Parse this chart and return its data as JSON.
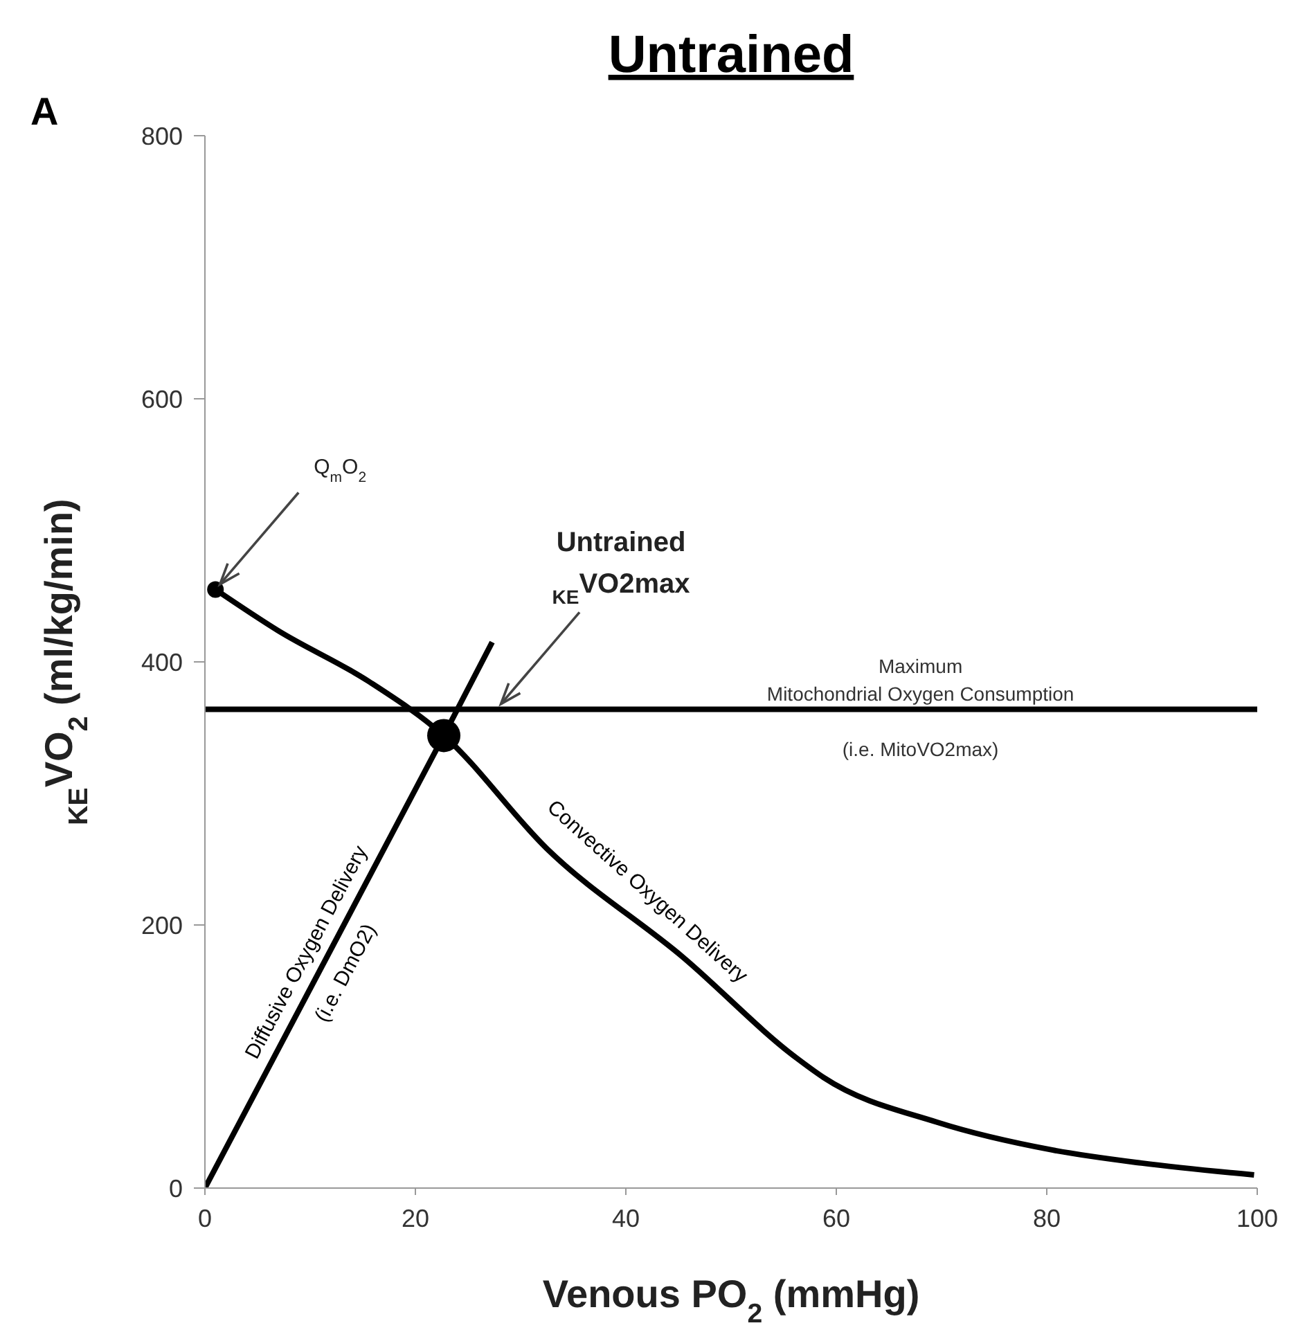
{
  "chart_data": {
    "type": "line",
    "title": "Untrained",
    "xlabel": "Venous PO$_{2}$ (mmHg)",
    "ylabel": "$_{KE}$VO$_{2}$ (ml/kg/min)",
    "xlim": [
      0,
      100
    ],
    "xticks": [
      0,
      20,
      40,
      60,
      80,
      100
    ],
    "ylim": [
      0,
      800
    ],
    "yticks": [
      0,
      200,
      400,
      600,
      800
    ],
    "grid": false,
    "legend": false,
    "marker": "none",
    "line_style": "solid",
    "series": [
      {
        "name": "Diffusive Oxygen Delivery\n(i.e. DmO2)",
        "color": "#000000",
        "x": [
          0,
          22.7,
          27.3
        ],
        "values": [
          0,
          344,
          415
        ]
      },
      {
        "name": "Convective Oxygen Delivery",
        "color": "#000000",
        "x": [
          1,
          6.9,
          15.6,
          22.7,
          32.5,
          45.5,
          56.2,
          58.8,
          69.6,
          80.5,
          89,
          99.7
        ],
        "values": [
          455,
          424,
          385,
          344,
          258,
          175,
          99,
          84,
          50,
          29,
          19,
          10
        ]
      },
      {
        "type": "scatter",
        "color": "#000000",
        "marker": "circle",
        "x": [
          1
        ],
        "values": [
          455
        ]
      },
      {
        "type": "scatter",
        "color": "#000000",
        "marker": "circle",
        "x": [
          22.7
        ],
        "values": [
          344
        ]
      }
    ],
    "ref_lines": [
      {
        "axis": "y",
        "value": 364,
        "label": "Maximum\nMitochondrial Oxygen Consumption\n(i.e. MitoVO2max)",
        "color": "#000000",
        "line_style": "solid"
      }
    ],
    "annotations": [
      "A",
      {
        "text": "Q$_{m}$O$_{2}$",
        "x": 1,
        "y": 455
      },
      {
        "text": "Untrained\n$_{KE}$VO2max",
        "x": 27.7,
        "y": 364
      }
    ]
  }
}
